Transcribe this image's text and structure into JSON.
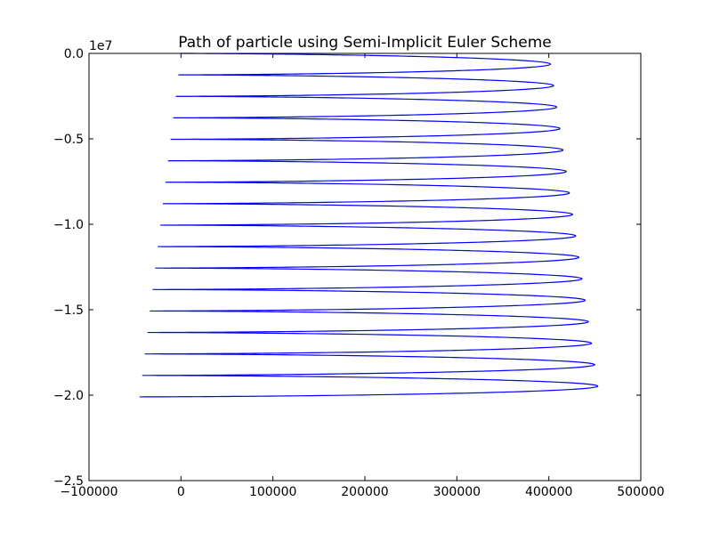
{
  "chart_data": {
    "type": "line",
    "title": "Path of particle using Semi-Implicit Euler Scheme",
    "xlabel": "",
    "ylabel": "",
    "xlim": [
      -100000,
      500000
    ],
    "ylim": [
      -25000000,
      0
    ],
    "y_offset_label": "1e7",
    "xticks": [
      -100000,
      0,
      100000,
      200000,
      300000,
      400000,
      500000
    ],
    "xtick_labels": [
      "−100000",
      "0",
      "100000",
      "200000",
      "300000",
      "400000",
      "500000"
    ],
    "yticks": [
      0,
      -5000000,
      -10000000,
      -15000000,
      -20000000,
      -25000000
    ],
    "ytick_labels": [
      "0.0",
      "−0.5",
      "−1.0",
      "−1.5",
      "−2.0",
      "−2.5"
    ],
    "grid": false,
    "line_color": "#0000ff",
    "series": [
      {
        "x_center": 200000,
        "x_center_end": 205000,
        "amplitude_start": 200000,
        "amplitude_end": 250000,
        "y_start": 0,
        "y_end": -20100000,
        "half_cycles": 32,
        "start_phase": "left"
      }
    ]
  }
}
